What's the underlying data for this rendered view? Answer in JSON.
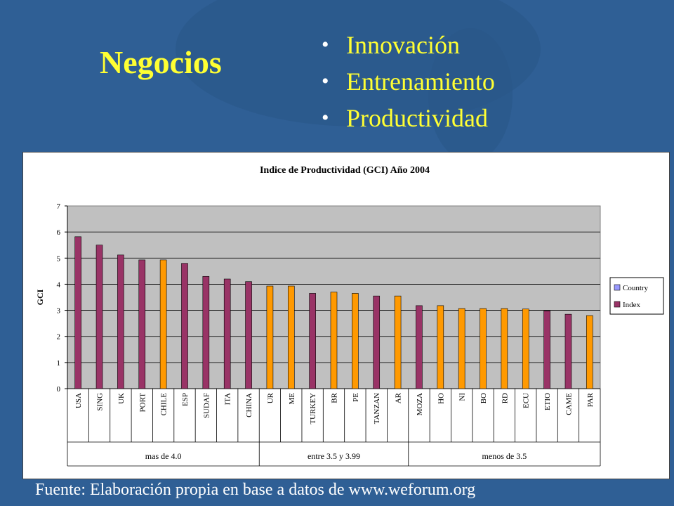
{
  "slide": {
    "title": "Negocios",
    "bullets": [
      "Innovación",
      "Entrenamiento",
      "Productividad"
    ],
    "source": "Fuente: Elaboración propia en base a datos de www.weforum.org"
  },
  "colors": {
    "background": "#2f5f95",
    "title": "#ffff33",
    "plot_bg": "#c0c0c0",
    "index_bar": "#993366",
    "country_bar": "#ff9900",
    "country_legend": "#9999ff"
  },
  "chart_data": {
    "type": "bar",
    "title": "Indice de Productividad (GCI) Año 2004",
    "ylabel": "GCI",
    "xlabel": "",
    "ylim": [
      0,
      7
    ],
    "yticks": [
      "0",
      "1",
      "2",
      "3",
      "4",
      "5",
      "6",
      "7"
    ],
    "grid": true,
    "legend_position": "right",
    "legend": [
      {
        "name": "Country",
        "color": "#9999ff"
      },
      {
        "name": "Index",
        "color": "#993366"
      }
    ],
    "categories": [
      "USA",
      "SING",
      "UK",
      "PORT",
      "CHILE",
      "ESP",
      "SUDAF",
      "ITA",
      "CHINA",
      "UR",
      "ME",
      "TURKEY",
      "BR",
      "PE",
      "TANZAN",
      "AR",
      "MOZA",
      "HO",
      "NI",
      "BO",
      "RD",
      "ECU",
      "ETIO",
      "CAME",
      "PAR"
    ],
    "values": [
      5.82,
      5.5,
      5.12,
      4.93,
      4.93,
      4.8,
      4.3,
      4.2,
      4.1,
      3.93,
      3.93,
      3.65,
      3.7,
      3.65,
      3.55,
      3.55,
      3.18,
      3.18,
      3.07,
      3.07,
      3.07,
      3.05,
      2.98,
      2.85,
      2.8
    ],
    "bar_colors": [
      "#993366",
      "#993366",
      "#993366",
      "#993366",
      "#ff9900",
      "#993366",
      "#993366",
      "#993366",
      "#993366",
      "#ff9900",
      "#ff9900",
      "#993366",
      "#ff9900",
      "#ff9900",
      "#993366",
      "#ff9900",
      "#993366",
      "#ff9900",
      "#ff9900",
      "#ff9900",
      "#ff9900",
      "#ff9900",
      "#993366",
      "#993366",
      "#ff9900"
    ],
    "groups": [
      {
        "label": "mas de 4.0",
        "count": 9
      },
      {
        "label": "entre 3.5 y 3.99",
        "count": 7
      },
      {
        "label": "menos de 3.5",
        "count": 9
      }
    ]
  }
}
